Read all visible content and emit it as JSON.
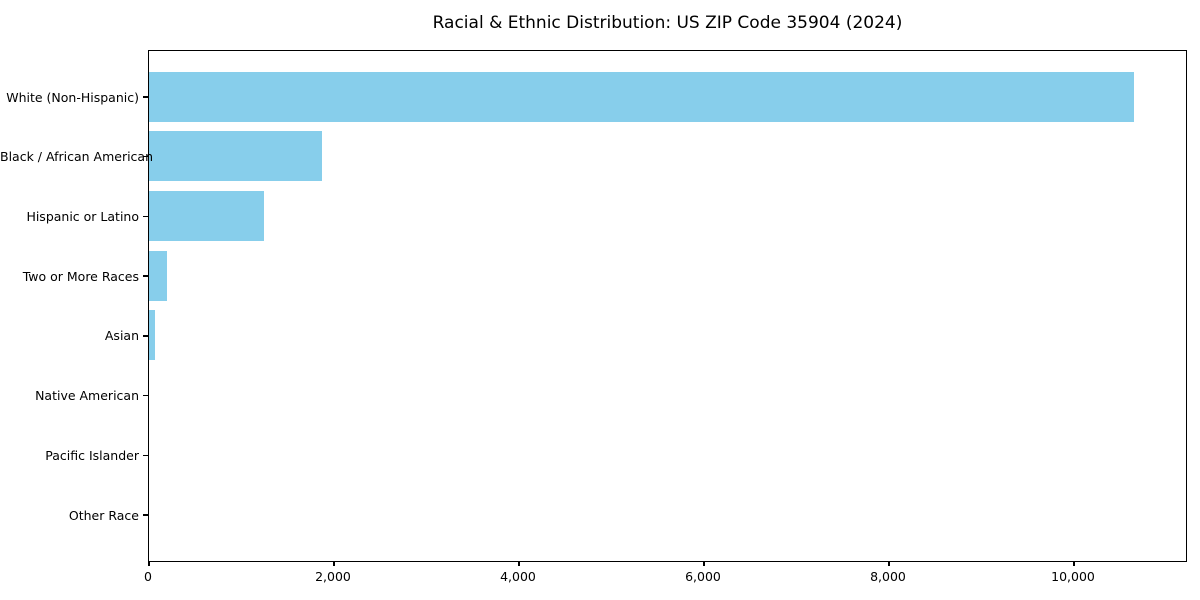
{
  "chart_data": {
    "type": "bar",
    "orientation": "horizontal",
    "title": "Racial & Ethnic Distribution: US ZIP Code 35904 (2024)",
    "categories": [
      "White (Non-Hispanic)",
      "Black / African American",
      "Hispanic or Latino",
      "Two or More Races",
      "Asian",
      "Native American",
      "Pacific Islander",
      "Other Race"
    ],
    "values": [
      10650,
      1875,
      1240,
      190,
      70,
      0,
      0,
      0
    ],
    "xlabel": "",
    "ylabel": "",
    "xlim": [
      0,
      11200
    ],
    "x_ticks": [
      0,
      2000,
      4000,
      6000,
      8000,
      10000
    ],
    "x_tick_labels": [
      "0",
      "2,000",
      "4,000",
      "6,000",
      "8,000",
      "10,000"
    ],
    "bar_color": "#87CEEB",
    "axis_color": "#000000",
    "background_color": "#ffffff",
    "grid": false,
    "legend": "none"
  }
}
